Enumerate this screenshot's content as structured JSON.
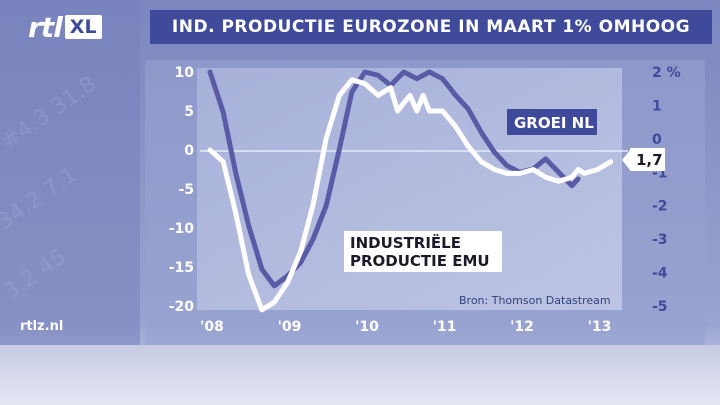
{
  "header": {
    "logo_text": "rtl",
    "logo_badge": "XL",
    "title": "IND. PRODUCTIE EUROZONE IN MAART 1% OMHOOG"
  },
  "footer": {
    "site": "rtlz.nl"
  },
  "colors": {
    "title_bg": "#3f4a9a",
    "left_axis_text": "#ffffff",
    "right_axis_text": "#3f4a9a",
    "series_emu": "#ffffff",
    "series_nl": "#5a5aa6"
  },
  "chart_data": {
    "type": "line",
    "title": "IND. PRODUCTIE EUROZONE IN MAART 1% OMHOOG",
    "source": "Bron: Thomson Datastream",
    "x_ticks": [
      "'08",
      "'09",
      "'10",
      "'11",
      "'12",
      "'13"
    ],
    "x_range": [
      2008,
      2013.2
    ],
    "y_left": {
      "range": [
        -20,
        10
      ],
      "ticks": [
        "10",
        "5",
        "0",
        "-5",
        "-10",
        "-15",
        "-20"
      ],
      "series": "INDUSTRIËLE PRODUCTIE EMU"
    },
    "y_right": {
      "range": [
        -5,
        2
      ],
      "ticks": [
        "2 %",
        "1",
        "0",
        "-1",
        "-2",
        "-3",
        "-4",
        "-5"
      ],
      "series": "GROEI NL"
    },
    "zero_line": true,
    "series": [
      {
        "name": "INDUSTRIËLE PRODUCTIE EMU",
        "axis": "left",
        "label_lines": [
          "INDUSTRIËLE",
          "PRODUCTIE EMU"
        ],
        "x": [
          2008.0,
          2008.17,
          2008.33,
          2008.5,
          2008.67,
          2008.83,
          2009.0,
          2009.17,
          2009.33,
          2009.5,
          2009.67,
          2009.83,
          2010.0,
          2010.17,
          2010.33,
          2010.42,
          2010.5,
          2010.58,
          2010.67,
          2010.75,
          2010.83,
          2011.0,
          2011.17,
          2011.33,
          2011.5,
          2011.67,
          2011.83,
          2012.0,
          2012.17,
          2012.33,
          2012.5,
          2012.67,
          2012.75,
          2012.83,
          2013.0,
          2013.17
        ],
        "values": [
          0,
          -1.5,
          -8,
          -16,
          -20.5,
          -19.5,
          -17,
          -13,
          -7,
          1.5,
          7,
          9,
          8.5,
          7,
          8,
          5,
          6,
          7,
          5,
          7,
          5,
          5,
          3,
          0.5,
          -1.5,
          -2.5,
          -3,
          -3,
          -2.5,
          -3.5,
          -4,
          -3.5,
          -2.5,
          -3,
          -2.5,
          -1.5
        ]
      },
      {
        "name": "GROEI NL",
        "axis": "right",
        "value_label": "1,7",
        "x": [
          2008.0,
          2008.17,
          2008.33,
          2008.5,
          2008.67,
          2008.83,
          2009.0,
          2009.17,
          2009.33,
          2009.5,
          2009.67,
          2009.83,
          2010.0,
          2010.17,
          2010.33,
          2010.5,
          2010.67,
          2010.83,
          2011.0,
          2011.17,
          2011.33,
          2011.5,
          2011.67,
          2011.83,
          2012.0,
          2012.17,
          2012.33,
          2012.5,
          2012.67,
          2012.75
        ],
        "values": [
          2.0,
          0.8,
          -1.0,
          -2.6,
          -3.9,
          -4.4,
          -4.1,
          -3.7,
          -3.0,
          -2.0,
          -0.3,
          1.4,
          2.0,
          1.9,
          1.6,
          2.0,
          1.8,
          2.0,
          1.8,
          1.3,
          0.9,
          0.2,
          -0.4,
          -0.8,
          -1.0,
          -0.9,
          -0.6,
          -1.0,
          -1.4,
          -1.2
        ]
      }
    ]
  }
}
